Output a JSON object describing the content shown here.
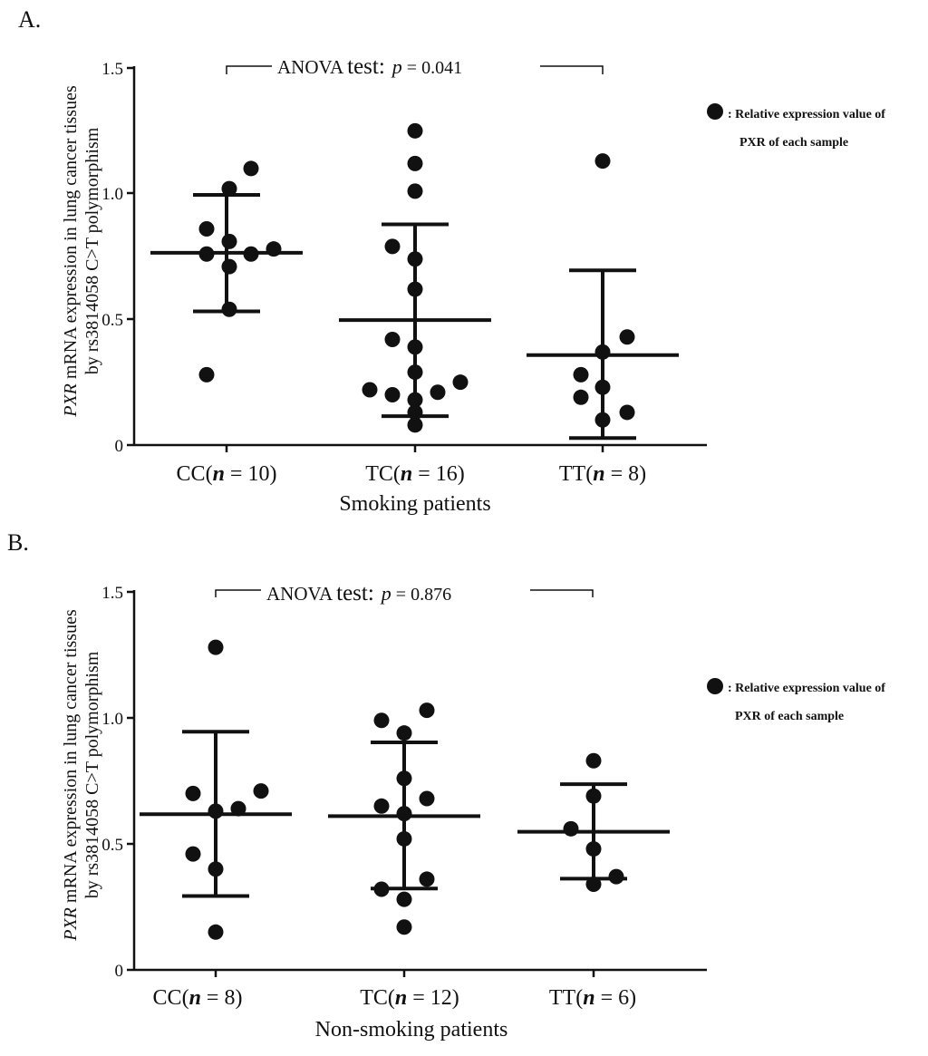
{
  "panels": [
    {
      "panel_label": "A.",
      "legend_marker": "●",
      "legend_line1": ": Relative expression value of",
      "legend_line2": "PXR of each sample",
      "ylabel_italic": "PXR",
      "ylabel_rest": " mRNA expression in lung cancer tissues",
      "ylabel_line2": "by rs3814058 C>T polymorphism",
      "xlabel": "Smoking patients",
      "annotation": {
        "anova": "ANOVA",
        "test": "test:",
        "p": "p",
        "value": "= 0.041"
      },
      "chart_data": {
        "type": "scatter",
        "ylim": [
          0,
          1.5
        ],
        "yticks": [
          "0",
          "0.5",
          "1.0",
          "1.5"
        ],
        "groups": [
          {
            "label_prefix": "CC(",
            "label_n": "n",
            "label_suffix": " = 10)",
            "mean": 0.765,
            "sd_upper": 0.995,
            "sd_lower": 0.532,
            "values": [
              1.1,
              1.02,
              0.86,
              0.81,
              0.76,
              0.76,
              0.78,
              0.71,
              0.54,
              0.28
            ],
            "offsets": [
              27,
              3,
              -22,
              3,
              -22,
              27,
              52,
              3,
              3,
              -22
            ]
          },
          {
            "label_prefix": "TC(",
            "label_n": "n",
            "label_suffix": " = 16)",
            "mean": 0.497,
            "sd_upper": 0.878,
            "sd_lower": 0.115,
            "values": [
              1.25,
              1.12,
              1.01,
              0.79,
              0.74,
              0.62,
              0.42,
              0.39,
              0.29,
              0.25,
              0.22,
              0.21,
              0.2,
              0.18,
              0.13,
              0.08
            ],
            "offsets": [
              0,
              0,
              0,
              -25,
              0,
              0,
              -25,
              0,
              0,
              50,
              -50,
              25,
              -25,
              0,
              0,
              0
            ]
          },
          {
            "label_prefix": "TT(",
            "label_n": "n",
            "label_suffix": " = 8)",
            "mean": 0.358,
            "sd_upper": 0.695,
            "sd_lower": 0.028,
            "values": [
              1.13,
              0.43,
              0.37,
              0.28,
              0.23,
              0.19,
              0.13,
              0.1
            ],
            "offsets": [
              0,
              27,
              0,
              -24,
              0,
              -24,
              27,
              0
            ]
          }
        ]
      }
    },
    {
      "panel_label": "B.",
      "legend_marker": "●",
      "legend_line1": ": Relative expression value of",
      "legend_line2": "PXR of each sample",
      "ylabel_italic": "PXR",
      "ylabel_rest": " mRNA expression in lung cancer tissues",
      "ylabel_line2": "by rs3814058 C>T polymorphism",
      "xlabel": "Non-smoking patients",
      "annotation": {
        "anova": "ANOVA",
        "test": "test:",
        "p": "p",
        "value": "= 0.876"
      },
      "chart_data": {
        "type": "scatter",
        "ylim": [
          0,
          1.5
        ],
        "yticks": [
          "0",
          "0.5",
          "1.0",
          "1.5"
        ],
        "groups": [
          {
            "label_prefix": "CC(",
            "label_n": "n",
            "label_suffix": " = 8)",
            "mean": 0.618,
            "sd_upper": 0.945,
            "sd_lower": 0.293,
            "values": [
              1.28,
              0.7,
              0.71,
              0.64,
              0.63,
              0.46,
              0.4,
              0.15
            ],
            "offsets": [
              0,
              -25,
              50,
              25,
              0,
              -25,
              0,
              0
            ]
          },
          {
            "label_prefix": "TC(",
            "label_n": "n",
            "label_suffix": " = 12)",
            "mean": 0.61,
            "sd_upper": 0.903,
            "sd_lower": 0.323,
            "values": [
              1.03,
              0.99,
              0.94,
              0.76,
              0.68,
              0.65,
              0.62,
              0.52,
              0.36,
              0.32,
              0.28,
              0.17
            ],
            "offsets": [
              25,
              -25,
              0,
              0,
              25,
              -25,
              0,
              0,
              25,
              -25,
              0,
              0
            ]
          },
          {
            "label_prefix": "TT(",
            "label_n": "n",
            "label_suffix": " = 6)",
            "mean": 0.548,
            "sd_upper": 0.737,
            "sd_lower": 0.362,
            "values": [
              0.83,
              0.69,
              0.56,
              0.48,
              0.37,
              0.34
            ],
            "offsets": [
              0,
              0,
              -25,
              0,
              25,
              0
            ]
          }
        ]
      }
    }
  ]
}
